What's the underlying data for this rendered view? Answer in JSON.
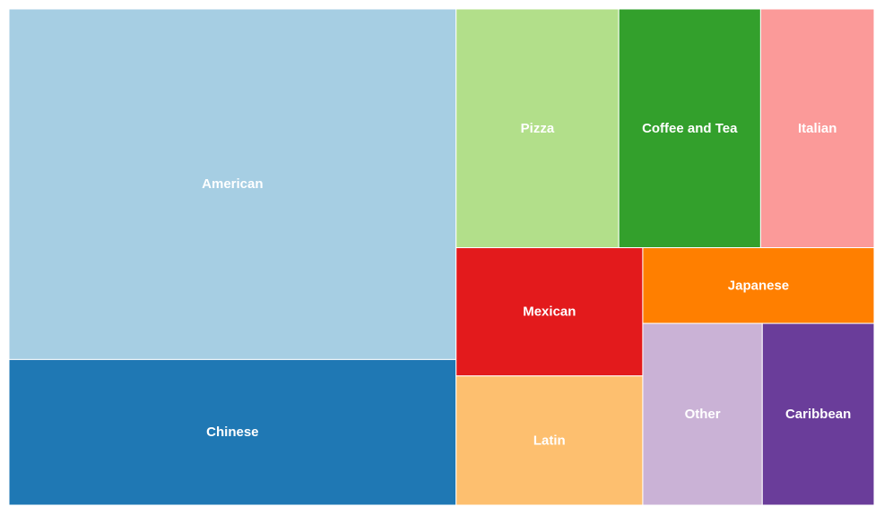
{
  "chart_data": {
    "type": "treemap",
    "title": "",
    "items": [
      {
        "label": "American",
        "value": 2684,
        "color": "#a6cee3"
      },
      {
        "label": "Chinese",
        "value": 1115,
        "color": "#1f78b4"
      },
      {
        "label": "Pizza",
        "value": 665,
        "color": "#b2df8a"
      },
      {
        "label": "Coffee and Tea",
        "value": 580,
        "color": "#33a02c"
      },
      {
        "label": "Italian",
        "value": 464,
        "color": "#fb9a99"
      },
      {
        "label": "Mexican",
        "value": 410,
        "color": "#e31a1c"
      },
      {
        "label": "Latin",
        "value": 413,
        "color": "#fdbf6f"
      },
      {
        "label": "Japanese",
        "value": 300,
        "color": "#ff7f00"
      },
      {
        "label": "Other",
        "value": 372,
        "color": "#cab2d6"
      },
      {
        "label": "Caribbean",
        "value": 348,
        "color": "#6a3d9a"
      }
    ]
  }
}
